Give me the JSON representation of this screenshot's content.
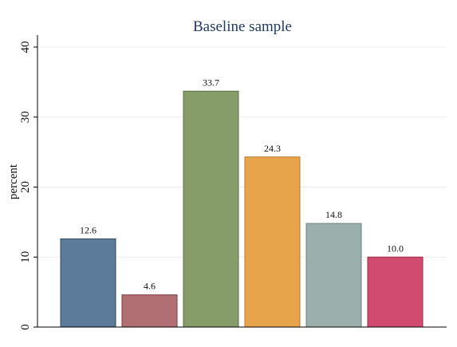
{
  "chart_data": {
    "type": "bar",
    "title": "Baseline sample",
    "xlabel": "",
    "ylabel": "percent",
    "ylim": [
      0,
      40
    ],
    "yticks": [
      0,
      10,
      20,
      30,
      40
    ],
    "grid": true,
    "values": [
      12.6,
      4.6,
      33.7,
      24.3,
      14.8,
      10.0
    ],
    "data_labels": [
      "12.6",
      "4.6",
      "33.7",
      "24.3",
      "14.8",
      "10.0"
    ],
    "colors": [
      "#5c7a99",
      "#b26f73",
      "#869d6a",
      "#e8a44b",
      "#9bb0ac",
      "#d04b6e"
    ],
    "bar_stroke_colors": [
      "#2f4b66",
      "#7a3e42",
      "#5b7243",
      "#b87a28",
      "#6c837f",
      "#9b2d4b"
    ]
  }
}
